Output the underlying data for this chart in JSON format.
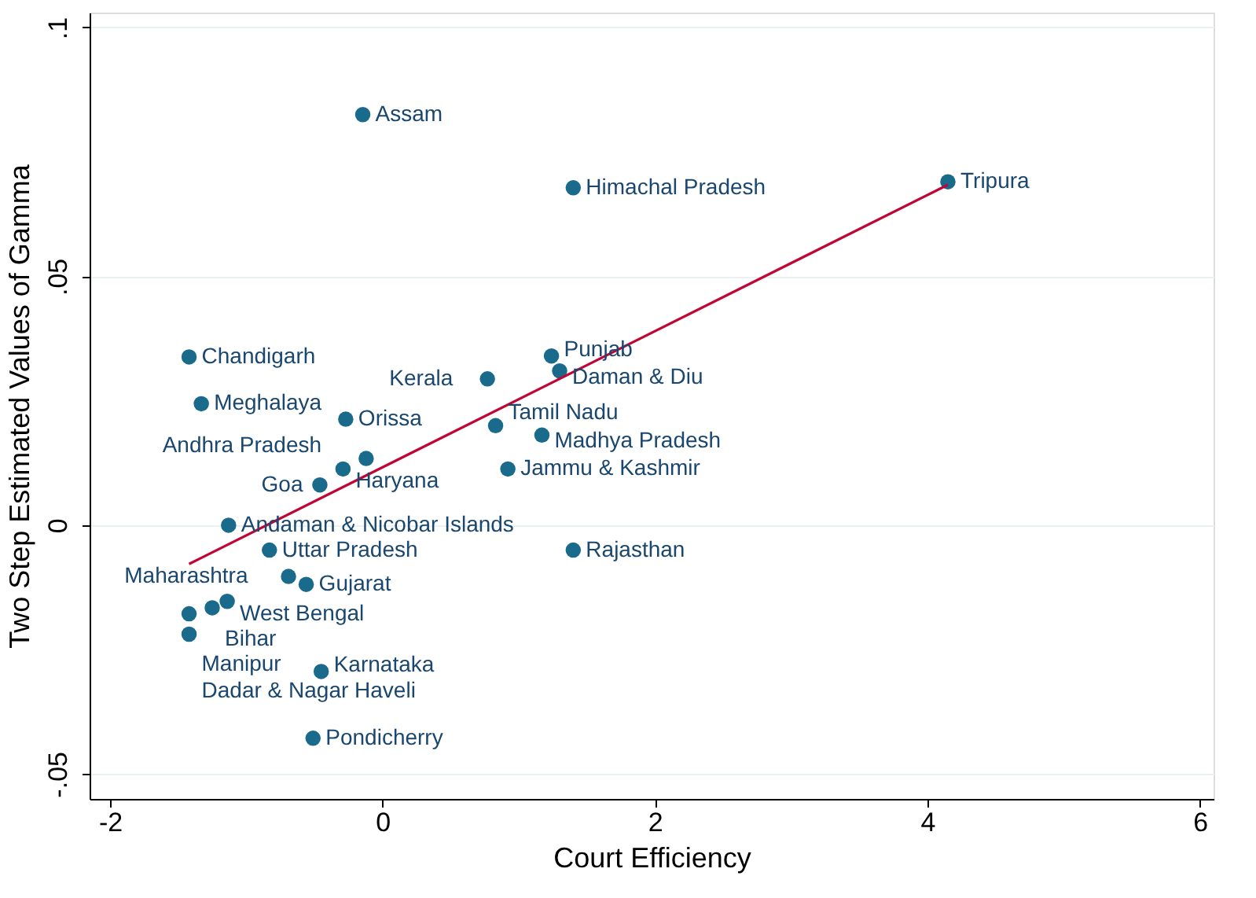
{
  "chart_data": {
    "type": "scatter",
    "xlabel": "Court Efficiency",
    "ylabel": "Two Step Estimated Values of Gamma",
    "xlim": [
      -2.15,
      6.1
    ],
    "ylim": [
      -0.055,
      0.103
    ],
    "xticks": [
      -2,
      0,
      2,
      4,
      6
    ],
    "yticks": [
      {
        "value": -0.05,
        "label": "-.05"
      },
      0,
      {
        "value": 0.05,
        "label": ".05"
      },
      {
        "value": 0.1,
        "label": ".1"
      }
    ],
    "grid": "y",
    "series": [
      {
        "type": "scatter",
        "marker": "circle",
        "color": "#1a6a8c",
        "x": [
          -0.145,
          1.4,
          4.15,
          -1.42,
          1.24,
          0.77,
          1.3,
          -1.33,
          -0.27,
          0.83,
          1.17,
          -0.12,
          -0.29,
          0.92,
          -0.46,
          -1.13,
          -0.83,
          1.4,
          -0.69,
          -0.56,
          -1.14,
          -1.25,
          -1.42,
          -1.42,
          -0.45,
          -0.51
        ],
        "values": [
          0.0825,
          0.0678,
          0.069,
          0.0338,
          0.034,
          0.0294,
          0.031,
          0.0244,
          0.0213,
          0.02,
          0.0181,
          0.0134,
          0.0113,
          0.0113,
          0.0081,
          0.0,
          -0.005,
          -0.005,
          -0.0103,
          -0.0119,
          -0.0153,
          -0.0166,
          -0.0178,
          -0.0219,
          -0.0294,
          -0.0428
        ]
      },
      {
        "type": "line",
        "color": "#c10534",
        "x": [
          -1.42,
          4.15
        ],
        "values": [
          -0.0078,
          0.0684
        ]
      }
    ],
    "annotations": [
      {
        "text": "Assam",
        "x": -0.145,
        "y": 0.0825
      },
      {
        "text": "Himachal Pradesh",
        "x": 1.4,
        "y": 0.0678
      },
      {
        "text": "Tripura",
        "x": 4.15,
        "y": 0.069
      },
      {
        "text": "Chandigarh",
        "x": -1.42,
        "y": 0.0338
      },
      {
        "text": "Punjab",
        "x": 1.24,
        "y": 0.034
      },
      {
        "text": "Kerala",
        "x": 0.77,
        "y": 0.0294
      },
      {
        "text": "Daman & Diu",
        "x": 1.3,
        "y": 0.031
      },
      {
        "text": "Meghalaya",
        "x": -1.33,
        "y": 0.0244
      },
      {
        "text": "Orissa",
        "x": -0.27,
        "y": 0.0213
      },
      {
        "text": "Tamil Nadu",
        "x": 0.83,
        "y": 0.02
      },
      {
        "text": "Madhya Pradesh",
        "x": 1.17,
        "y": 0.0181
      },
      {
        "text": "Andhra Pradesh",
        "x": -0.12,
        "y": 0.0134
      },
      {
        "text": "Haryana",
        "x": -0.29,
        "y": 0.0113
      },
      {
        "text": "Jammu & Kashmir",
        "x": 0.92,
        "y": 0.0113
      },
      {
        "text": "Goa",
        "x": -0.46,
        "y": 0.0081
      },
      {
        "text": "Andaman & Nicobar Islands",
        "x": -1.13,
        "y": 0.0
      },
      {
        "text": "Uttar Pradesh",
        "x": -0.83,
        "y": -0.005
      },
      {
        "text": "Rajasthan",
        "x": 1.4,
        "y": -0.005
      },
      {
        "text": "Maharashtra",
        "x": -0.69,
        "y": -0.0103
      },
      {
        "text": "Gujarat",
        "x": -0.56,
        "y": -0.0119
      },
      {
        "text": "West Bengal",
        "x": -1.14,
        "y": -0.0153
      },
      {
        "text": "Bihar",
        "x": -1.25,
        "y": -0.0166
      },
      {
        "text": "Manipur",
        "x": -1.42,
        "y": -0.0178
      },
      {
        "text": "Dadar & Nagar Haveli",
        "x": -1.42,
        "y": -0.0219
      },
      {
        "text": "Karnataka",
        "x": -0.45,
        "y": -0.0294
      },
      {
        "text": "Pondicherry",
        "x": -0.51,
        "y": -0.0428
      }
    ]
  }
}
